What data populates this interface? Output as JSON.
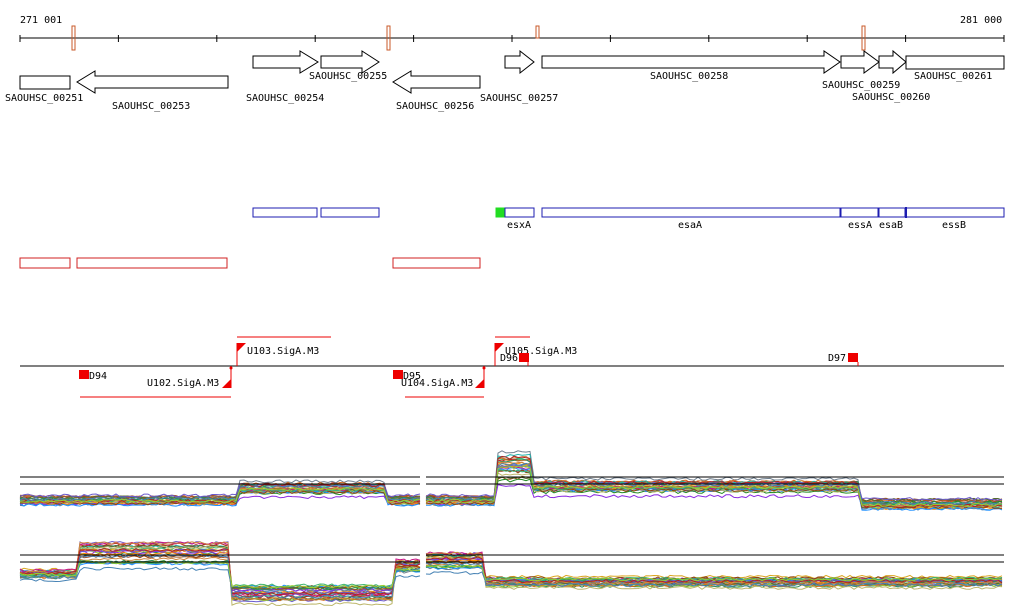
{
  "ruler": {
    "start_label": "271 001",
    "end_label": "281 000"
  },
  "genes": [
    {
      "id": "SAOUHSC_00251",
      "strand": "-"
    },
    {
      "id": "SAOUHSC_00253",
      "strand": "-"
    },
    {
      "id": "SAOUHSC_00254",
      "strand": "+"
    },
    {
      "id": "SAOUHSC_00255",
      "strand": "+"
    },
    {
      "id": "SAOUHSC_00256",
      "strand": "-"
    },
    {
      "id": "SAOUHSC_00257",
      "strand": "+"
    },
    {
      "id": "SAOUHSC_00258",
      "strand": "+"
    },
    {
      "id": "SAOUHSC_00259",
      "strand": "+"
    },
    {
      "id": "SAOUHSC_00260",
      "strand": "+"
    },
    {
      "id": "SAOUHSC_00261",
      "strand": "+"
    }
  ],
  "gene_names": [
    "esxA",
    "esaA",
    "essA",
    "esaB",
    "essB"
  ],
  "regulatory_features": [
    {
      "label": "D94"
    },
    {
      "label": "U102.SigA.M3"
    },
    {
      "label": "U103.SigA.M3"
    },
    {
      "label": "D95"
    },
    {
      "label": "U104.SigA.M3"
    },
    {
      "label": "U105.SigA.M3"
    },
    {
      "label": "D96"
    },
    {
      "label": "D97"
    }
  ],
  "colors": {
    "gene_outline": "#000000",
    "operon_plus": "#1c1cb0",
    "operon_minus": "#d02020",
    "feature_red": "#ee0000",
    "highlight_green": "#22dd22",
    "ruler_marker": "#c85a2a"
  }
}
